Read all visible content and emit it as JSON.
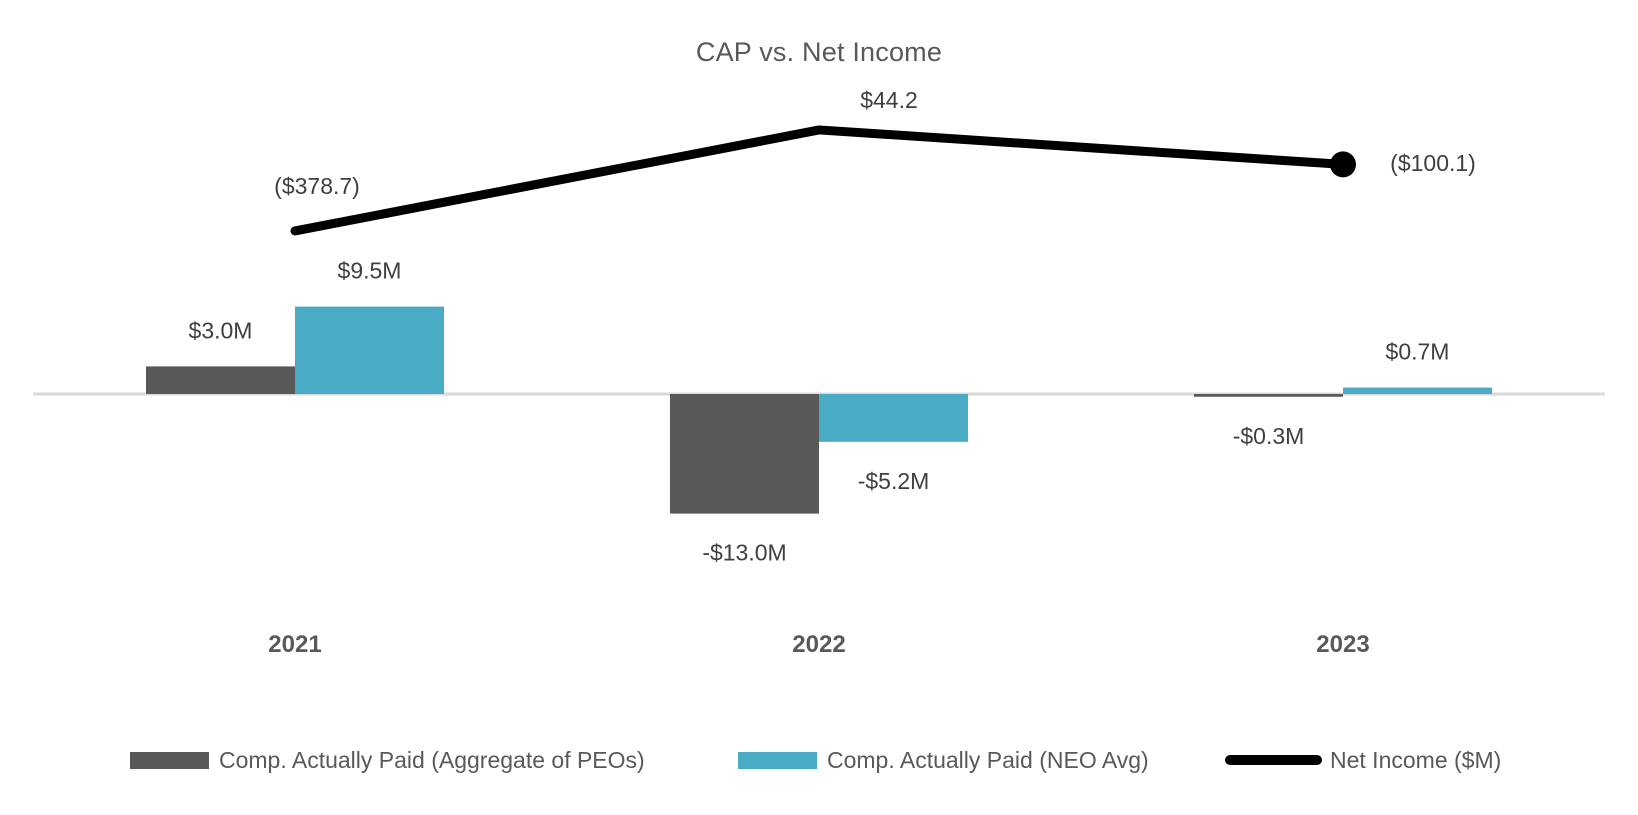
{
  "chart_data": {
    "type": "combo",
    "title": "CAP vs. Net Income",
    "categories": [
      "2021",
      "2022",
      "2023"
    ],
    "series": [
      {
        "id": "cap-aggregate-peo",
        "name": "Comp. Actually Paid (Aggregate of PEOs)",
        "type": "bar",
        "color": "#595959",
        "unit": "$M",
        "values": [
          3.0,
          -13.0,
          -0.3
        ],
        "labels": [
          "$3.0M",
          "-$13.0M",
          "-$0.3M"
        ]
      },
      {
        "id": "cap-neo-avg",
        "name": "Comp. Actually Paid (NEO Avg)",
        "type": "bar",
        "color": "#4AABC5",
        "unit": "$M",
        "values": [
          9.5,
          -5.2,
          0.7
        ],
        "labels": [
          "$9.5M",
          "-$5.2M",
          "$0.7M"
        ]
      },
      {
        "id": "net-income",
        "name": "Net Income ($M)",
        "type": "line",
        "color": "#000000",
        "unit": "$M",
        "axis": "secondary",
        "end_marker": true,
        "values": [
          -378.7,
          44.2,
          -100.1
        ],
        "labels": [
          "($378.7)",
          "$44.2",
          "($100.1)"
        ]
      }
    ],
    "legend_position": "bottom",
    "axes": {
      "y_axis_visible": false,
      "secondary_axis_visible": false,
      "gridlines": false,
      "zero_line_visible": true,
      "zero_line_color": "#D9D9D9",
      "category_label_color": "#595959",
      "data_label_color": "#3F3F3F",
      "title_color": "#595959"
    }
  }
}
